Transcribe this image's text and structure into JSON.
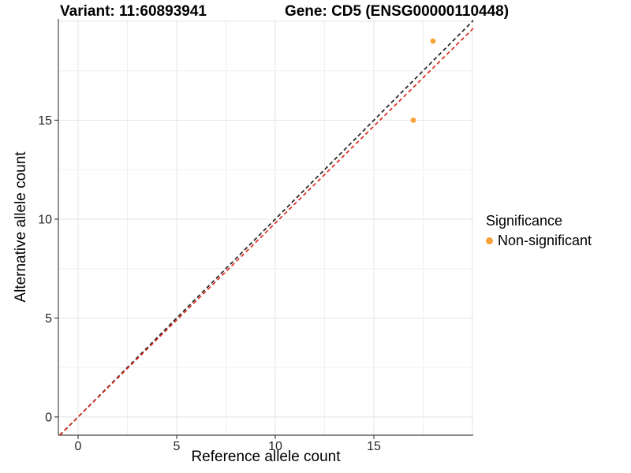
{
  "titles": {
    "variant": "Variant: 11:60893941",
    "gene": "Gene: CD5 (ENSG00000110448)"
  },
  "chart_data": {
    "type": "scatter",
    "xlabel": "Reference allele count",
    "ylabel": "Alternative allele count",
    "xlim": [
      -1.0,
      20.04
    ],
    "ylim": [
      -0.92,
      20.12
    ],
    "x_ticks": [
      0,
      5,
      10,
      15
    ],
    "y_ticks": [
      0,
      5,
      10,
      15
    ],
    "major_grid": [
      0,
      5,
      10,
      15,
      20
    ],
    "minor_grid": [
      2.5,
      7.5,
      12.5,
      17.5
    ],
    "grid": "on",
    "points": [
      {
        "x": 18,
        "y": 19,
        "series": "Non-significant"
      },
      {
        "x": 17,
        "y": 15,
        "series": "Non-significant"
      }
    ],
    "lines": [
      {
        "name": "identity-line",
        "slope": 1.0,
        "intercept": 0,
        "color": "#212121",
        "style": "dashed"
      },
      {
        "name": "expected-ratio-line",
        "slope": 0.98,
        "intercept": 0,
        "color": "#E12B22",
        "style": "dashed"
      }
    ],
    "legend": {
      "title": "Significance",
      "position": "right",
      "items": [
        {
          "label": "Non-significant",
          "color": "#F9A13A"
        }
      ]
    }
  },
  "colors": {
    "point_orange": "#F9A13A",
    "line_black": "#212121",
    "line_red": "#E12B22",
    "grid_major": "#E5E5E5",
    "grid_minor": "#F0F0F0",
    "axis_line": "#474747",
    "tick_mark": "#333333",
    "tick_label": "#262626"
  }
}
